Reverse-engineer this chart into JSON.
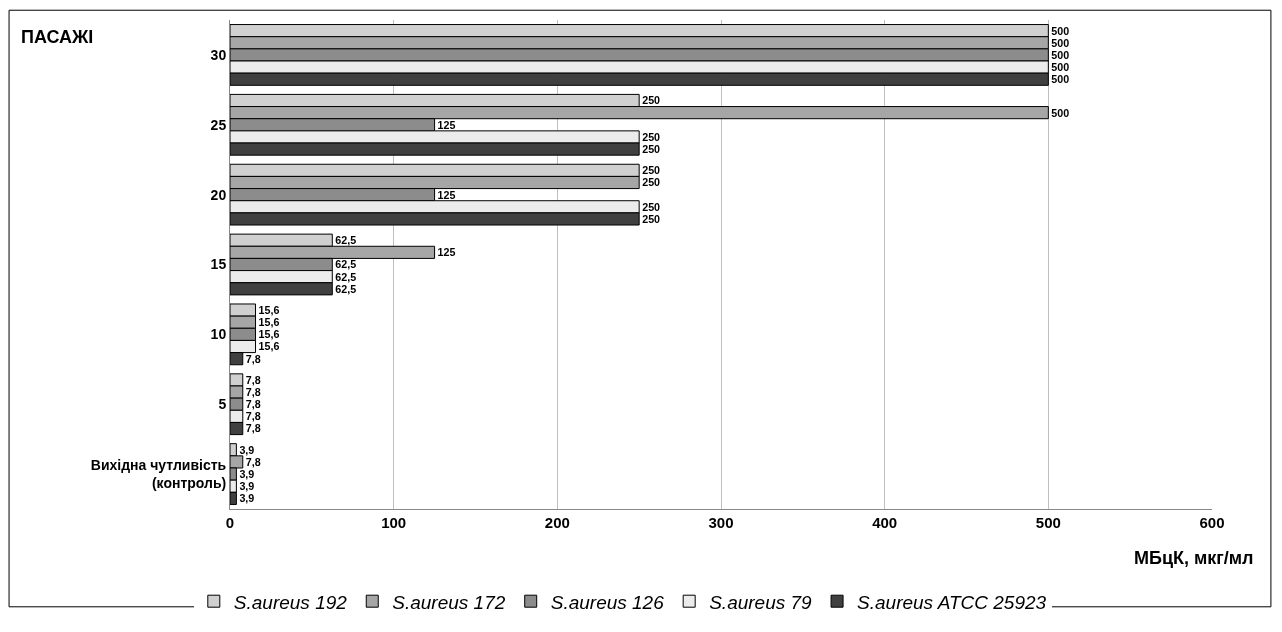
{
  "chart_data": {
    "type": "bar",
    "orientation": "horizontal",
    "ylabel": "ПАСАЖІ",
    "xlabel": "МБцК, мкг/мл",
    "categories": [
      "30",
      "25",
      "20",
      "15",
      "10",
      "5",
      "Вихідна чутливість\n(контроль)"
    ],
    "series": [
      {
        "name": "S.aureus 192",
        "color": "#d0d0d0",
        "values": [
          500,
          250,
          250,
          62.5,
          15.6,
          7.8,
          3.9
        ],
        "value_labels": [
          "500",
          "250",
          "250",
          "62,5",
          "15,6",
          "7,8",
          "3,9"
        ]
      },
      {
        "name": "S.aureus 172",
        "color": "#a6a6a6",
        "values": [
          500,
          500,
          250,
          125,
          15.6,
          7.8,
          7.8
        ],
        "value_labels": [
          "500",
          "500",
          "250",
          "125",
          "15,6",
          "7,8",
          "7,8"
        ]
      },
      {
        "name": "S.aureus 126",
        "color": "#8c8c8c",
        "values": [
          500,
          125,
          125,
          62.5,
          15.6,
          7.8,
          3.9
        ],
        "value_labels": [
          "500",
          "125",
          "125",
          "62,5",
          "15,6",
          "7,8",
          "3,9"
        ]
      },
      {
        "name": "S.aureus 79",
        "color": "#ececec",
        "values": [
          500,
          250,
          250,
          62.5,
          15.6,
          7.8,
          3.9
        ],
        "value_labels": [
          "500",
          "250",
          "250",
          "62,5",
          "15,6",
          "7,8",
          "3,9"
        ]
      },
      {
        "name": "S.aureus ATCC 25923",
        "color": "#404040",
        "values": [
          500,
          250,
          250,
          62.5,
          7.8,
          7.8,
          3.9
        ],
        "value_labels": [
          "500",
          "250",
          "250",
          "62,5",
          "7,8",
          "7,8",
          "3,9"
        ]
      }
    ],
    "xlim": [
      0,
      600
    ],
    "xticks": [
      0,
      100,
      200,
      300,
      400,
      500,
      600
    ],
    "grid": "x",
    "legend": "bottom"
  }
}
